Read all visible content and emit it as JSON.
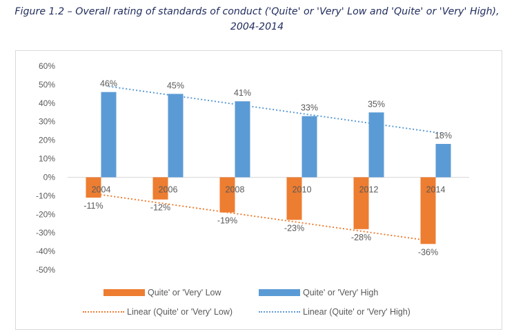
{
  "title": {
    "line1": "Figure 1.2 – Overall rating of standards of conduct ('Quite' or 'Very' Low and 'Quite' or 'Very' High),",
    "line2": "2004-2014"
  },
  "colors": {
    "low": "#ed7d31",
    "high": "#5b9bd5",
    "gridline": "#d9d9d9",
    "text": "#595959"
  },
  "legend": {
    "low": "Quite' or 'Very' Low",
    "high": "Quite' or 'Very' High",
    "low_trend": "Linear (Quite' or 'Very' Low)",
    "high_trend": "Linear (Quite' or 'Very' High)"
  },
  "chart_data": {
    "type": "bar",
    "categories": [
      "2004",
      "2006",
      "2008",
      "2010",
      "2012",
      "2014"
    ],
    "series": [
      {
        "name": "Quite' or 'Very' Low",
        "values": [
          -11,
          -12,
          -19,
          -23,
          -28,
          -36
        ],
        "labels": [
          "-11%",
          "-12%",
          "-19%",
          "-23%",
          "-28%",
          "-36%"
        ]
      },
      {
        "name": "Quite' or 'Very' High",
        "values": [
          46,
          45,
          41,
          33,
          35,
          18
        ],
        "labels": [
          "46%",
          "45%",
          "41%",
          "33%",
          "35%",
          "18%"
        ]
      }
    ],
    "trendlines": [
      {
        "name": "Linear (Quite' or 'Very' Low)",
        "series": "Quite' or 'Very' Low",
        "style": "dotted"
      },
      {
        "name": "Linear (Quite' or 'Very' High)",
        "series": "Quite' or 'Very' High",
        "style": "dotted"
      }
    ],
    "ylim": [
      -50,
      60
    ],
    "yticks": [
      60,
      50,
      40,
      30,
      20,
      10,
      0,
      -10,
      -20,
      -30,
      -40,
      -50
    ],
    "ytick_labels": [
      "60%",
      "50%",
      "40%",
      "30%",
      "20%",
      "10%",
      "0%",
      "-10%",
      "-20%",
      "-30%",
      "-40%",
      "-50%"
    ],
    "grid": false,
    "legend_position": "bottom"
  }
}
